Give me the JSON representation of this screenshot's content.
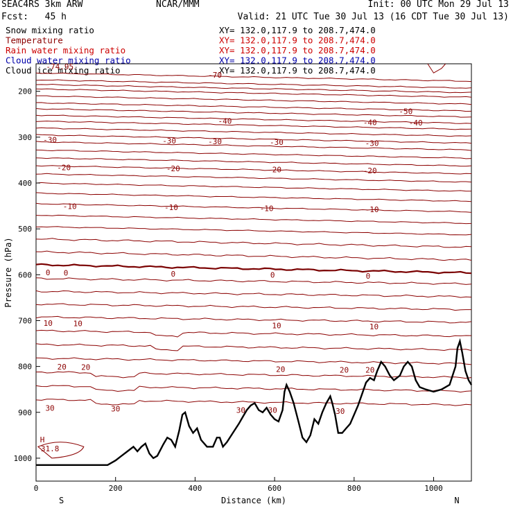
{
  "header": {
    "model": "SEAC4RS  3km ARW",
    "org": "NCAR/MMM",
    "init": "Init: 00 UTC Mon 29 Jul 13",
    "fcst": "Fcst:   45 h",
    "valid": "Valid: 21 UTC Tue 30 Jul 13 (16 CDT Tue 30 Jul 13)"
  },
  "legend": [
    {
      "name": "Snow mixing ratio",
      "xy": "XY= 132.0,117.9 to 208.7,474.0",
      "color": "#000000"
    },
    {
      "name": "Temperature",
      "xy": "XY= 132.0,117.9 to 208.7,474.0",
      "color": "#8b0000"
    },
    {
      "name": "Rain water mixing ratio",
      "xy": "XY= 132.0,117.9 to 208.7,474.0",
      "color": "#cc0000"
    },
    {
      "name": "Cloud water mixing ratio",
      "xy": "XY= 132.0,117.9 to 208.7,474.0",
      "color": "#0000aa"
    },
    {
      "name": "Cloud ice mixing ratio",
      "xy": "XY= 132.0,117.9 to 208.7,474.0",
      "color": "#000000"
    }
  ],
  "chart_data": {
    "type": "contour",
    "xlabel": "Distance (km)",
    "ylabel": "Pressure (hPa)",
    "xlim": [
      0,
      1095
    ],
    "ylim": [
      1050,
      140
    ],
    "xticks": [
      0,
      200,
      400,
      600,
      800,
      1000
    ],
    "yticks": [
      200,
      300,
      400,
      500,
      600,
      700,
      800,
      900,
      1000
    ],
    "x_end_labels": [
      "S",
      "N"
    ],
    "contour_color": "#8b0000",
    "zero_line_color": "#7a0000",
    "temperature_contours": [
      {
        "pressure": 160,
        "labels": [
          {
            "x": 450,
            "text": "-70"
          }
        ]
      },
      {
        "pressure": 235,
        "labels": [
          {
            "x": 930,
            "text": "-50"
          }
        ]
      },
      {
        "pressure": 260,
        "labels": [
          {
            "x": 475,
            "text": "-40"
          },
          {
            "x": 840,
            "text": "-40"
          },
          {
            "x": 955,
            "text": "-40"
          }
        ]
      },
      {
        "pressure": 305,
        "labels": [
          {
            "x": 35,
            "text": "-30"
          },
          {
            "x": 335,
            "text": "-30"
          },
          {
            "x": 450,
            "text": "-30"
          },
          {
            "x": 605,
            "text": "-30"
          },
          {
            "x": 845,
            "text": "-30"
          }
        ]
      },
      {
        "pressure": 365,
        "labels": [
          {
            "x": 70,
            "text": "-20"
          },
          {
            "x": 345,
            "text": "-20"
          },
          {
            "x": 600,
            "text": "-20"
          },
          {
            "x": 840,
            "text": "-20"
          }
        ]
      },
      {
        "pressure": 450,
        "labels": [
          {
            "x": 85,
            "text": "-10"
          },
          {
            "x": 340,
            "text": "-10"
          },
          {
            "x": 580,
            "text": "-10"
          },
          {
            "x": 845,
            "text": "-10"
          }
        ]
      },
      {
        "pressure": 595,
        "bold": true,
        "labels": [
          {
            "x": 30,
            "text": "0"
          },
          {
            "x": 75,
            "text": "0"
          },
          {
            "x": 345,
            "text": "0"
          },
          {
            "x": 595,
            "text": "0"
          },
          {
            "x": 835,
            "text": "0"
          }
        ]
      },
      {
        "pressure": 705,
        "labels": [
          {
            "x": 30,
            "text": "10"
          },
          {
            "x": 105,
            "text": "10"
          },
          {
            "x": 605,
            "text": "10"
          },
          {
            "x": 850,
            "text": "10"
          }
        ]
      },
      {
        "pressure": 800,
        "labels": [
          {
            "x": 65,
            "text": "20"
          },
          {
            "x": 125,
            "text": "20"
          },
          {
            "x": 615,
            "text": "20"
          },
          {
            "x": 775,
            "text": "20"
          },
          {
            "x": 840,
            "text": "20"
          }
        ]
      },
      {
        "pressure": 890,
        "labels": [
          {
            "x": 515,
            "text": "30"
          },
          {
            "x": 595,
            "text": "30"
          },
          {
            "x": 765,
            "text": "30"
          },
          {
            "x": 35,
            "text": "30"
          },
          {
            "x": 200,
            "text": "30"
          }
        ]
      }
    ],
    "isotherm_pressures": [
      160,
      175,
      185,
      195,
      210,
      225,
      238,
      252,
      265,
      280,
      295,
      310,
      328,
      345,
      362,
      380,
      400,
      422,
      445,
      470,
      495,
      522,
      550,
      578,
      608,
      636,
      664,
      692,
      722,
      752,
      782,
      812,
      842,
      872
    ],
    "misc_labels": [
      {
        "x": 25,
        "p": 152,
        "text": "-74.95"
      },
      {
        "x": 10,
        "p": 965,
        "text": "H"
      },
      {
        "x": 12,
        "p": 985,
        "text": "31.8"
      }
    ],
    "terrain": [
      [
        0,
        1015
      ],
      [
        180,
        1015
      ],
      [
        200,
        1005
      ],
      [
        215,
        995
      ],
      [
        230,
        985
      ],
      [
        245,
        975
      ],
      [
        255,
        985
      ],
      [
        265,
        975
      ],
      [
        275,
        968
      ],
      [
        285,
        990
      ],
      [
        295,
        1000
      ],
      [
        305,
        995
      ],
      [
        320,
        970
      ],
      [
        330,
        955
      ],
      [
        340,
        960
      ],
      [
        350,
        975
      ],
      [
        360,
        940
      ],
      [
        368,
        905
      ],
      [
        375,
        900
      ],
      [
        385,
        930
      ],
      [
        395,
        945
      ],
      [
        405,
        935
      ],
      [
        415,
        960
      ],
      [
        430,
        975
      ],
      [
        445,
        975
      ],
      [
        455,
        955
      ],
      [
        462,
        955
      ],
      [
        470,
        975
      ],
      [
        480,
        965
      ],
      [
        495,
        945
      ],
      [
        510,
        925
      ],
      [
        520,
        910
      ],
      [
        530,
        895
      ],
      [
        540,
        885
      ],
      [
        550,
        880
      ],
      [
        560,
        895
      ],
      [
        570,
        900
      ],
      [
        580,
        890
      ],
      [
        590,
        905
      ],
      [
        600,
        915
      ],
      [
        610,
        920
      ],
      [
        620,
        895
      ],
      [
        625,
        855
      ],
      [
        630,
        840
      ],
      [
        638,
        855
      ],
      [
        648,
        880
      ],
      [
        660,
        920
      ],
      [
        670,
        955
      ],
      [
        680,
        965
      ],
      [
        690,
        950
      ],
      [
        700,
        915
      ],
      [
        710,
        925
      ],
      [
        720,
        900
      ],
      [
        730,
        880
      ],
      [
        740,
        865
      ],
      [
        745,
        880
      ],
      [
        752,
        905
      ],
      [
        760,
        945
      ],
      [
        770,
        945
      ],
      [
        780,
        935
      ],
      [
        790,
        925
      ],
      [
        800,
        905
      ],
      [
        810,
        885
      ],
      [
        820,
        860
      ],
      [
        830,
        835
      ],
      [
        840,
        825
      ],
      [
        850,
        830
      ],
      [
        858,
        810
      ],
      [
        868,
        790
      ],
      [
        878,
        800
      ],
      [
        890,
        820
      ],
      [
        900,
        830
      ],
      [
        915,
        820
      ],
      [
        925,
        800
      ],
      [
        935,
        790
      ],
      [
        945,
        800
      ],
      [
        955,
        830
      ],
      [
        965,
        845
      ],
      [
        980,
        850
      ],
      [
        1000,
        855
      ],
      [
        1020,
        850
      ],
      [
        1040,
        840
      ],
      [
        1055,
        800
      ],
      [
        1060,
        760
      ],
      [
        1066,
        745
      ],
      [
        1072,
        770
      ],
      [
        1080,
        810
      ],
      [
        1088,
        830
      ],
      [
        1095,
        840
      ]
    ]
  }
}
